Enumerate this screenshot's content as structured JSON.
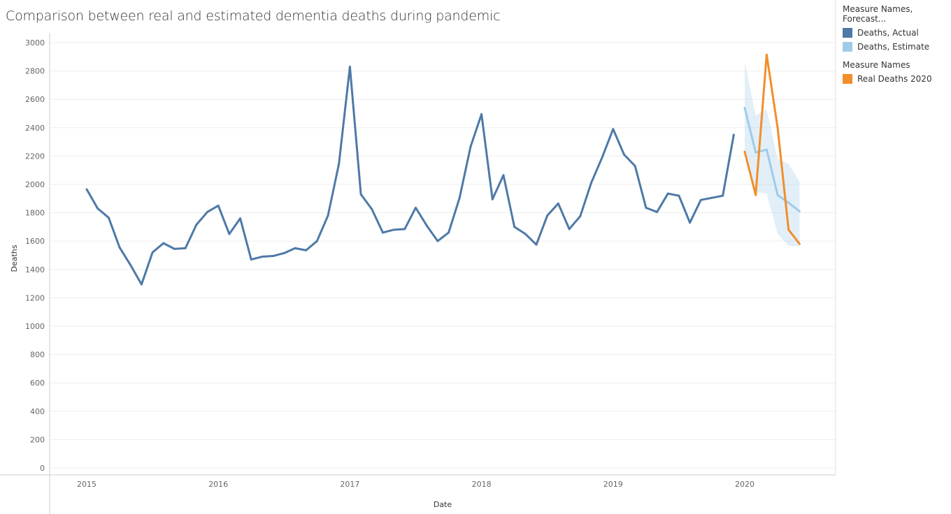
{
  "chart_data": {
    "type": "line",
    "title": "Comparison between real and estimated dementia deaths during pandemic",
    "xlabel": "Date",
    "ylabel": "Deaths",
    "ylim": [
      0,
      3000
    ],
    "yticks": [
      "0",
      "200",
      "400",
      "600",
      "800",
      "1000",
      "1200",
      "1400",
      "1600",
      "1800",
      "2000",
      "2200",
      "2400",
      "2600",
      "2800",
      "3000"
    ],
    "xticks": [
      "2015",
      "2016",
      "2017",
      "2018",
      "2019",
      "2020"
    ],
    "grid": true,
    "legend_position": "right",
    "legend": {
      "group1_title": "Measure Names, Forecast...",
      "group2_title": "Measure Names"
    },
    "series": [
      {
        "name": "Deaths, Actual",
        "color": "#4e79a7",
        "start": "2015-01",
        "values": [
          1965,
          1830,
          1765,
          1555,
          1430,
          1295,
          1520,
          1585,
          1545,
          1550,
          1715,
          1805,
          1850,
          1650,
          1760,
          1470,
          1490,
          1495,
          1515,
          1550,
          1535,
          1600,
          1780,
          2145,
          2830,
          1930,
          1825,
          1660,
          1680,
          1685,
          1835,
          1710,
          1600,
          1660,
          1905,
          2265,
          2495,
          1895,
          2065,
          1700,
          1650,
          1575,
          1780,
          1865,
          1685,
          1775,
          2010,
          2190,
          2390,
          2210,
          2130,
          1835,
          1805,
          1935,
          1920,
          1730,
          1890,
          1905,
          1920,
          2350
        ]
      },
      {
        "name": "Deaths, Estimate",
        "color": "#a0cbe8",
        "start": "2020-01",
        "values": [
          2540,
          2225,
          2245,
          1925,
          1870,
          1810
        ],
        "upper": [
          2865,
          2485,
          2530,
          2180,
          2145,
          2020
        ],
        "lower": [
          2230,
          1945,
          1935,
          1650,
          1565,
          1565
        ]
      },
      {
        "name": "Real Deaths 2020",
        "color": "#f28e2b",
        "start": "2020-01",
        "values": [
          2230,
          1925,
          2915,
          2400,
          1680,
          1580
        ]
      }
    ]
  }
}
